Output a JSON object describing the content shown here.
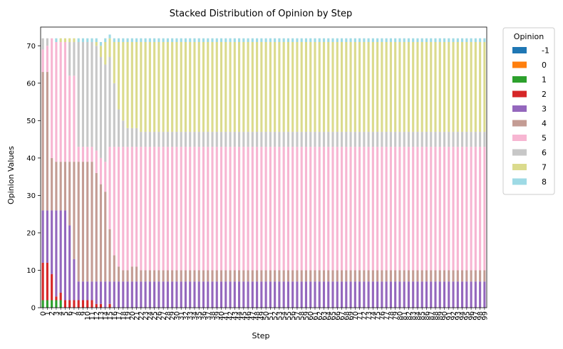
{
  "chart_data": {
    "type": "bar",
    "stacked": true,
    "title": "Stacked Distribution of Opinion by Step",
    "xlabel": "Step",
    "ylabel": "Opinion Values",
    "ylim": [
      0,
      75
    ],
    "yticks": [
      0,
      10,
      20,
      30,
      40,
      50,
      60,
      70
    ],
    "grid": false,
    "legend": {
      "title": "Opinion",
      "placement": "upper-right-outside"
    },
    "x": [
      0,
      1,
      2,
      3,
      4,
      5,
      6,
      7,
      8,
      9,
      10,
      11,
      12,
      13,
      14,
      15,
      16,
      17,
      18,
      19,
      20,
      21,
      22,
      23,
      24,
      25,
      26,
      27,
      28,
      29,
      30,
      31,
      32,
      33,
      34,
      35,
      36,
      37,
      38,
      39,
      40,
      41,
      42,
      43,
      44,
      45,
      46,
      47,
      48,
      49,
      50,
      51,
      52,
      53,
      54,
      55,
      56,
      57,
      58,
      59,
      60,
      61,
      62,
      63,
      64,
      65,
      66,
      67,
      68,
      69,
      70,
      71,
      72,
      73,
      74,
      75,
      76,
      77,
      78,
      79,
      80,
      81,
      82,
      83,
      84,
      85,
      86,
      87,
      88,
      89,
      90,
      91,
      92,
      93,
      94,
      95,
      96,
      97,
      98,
      99
    ],
    "series": [
      {
        "name": "-1",
        "color": "#1f77b4",
        "values": [
          0,
          0,
          0,
          0,
          0,
          0,
          0,
          0,
          0,
          0,
          0,
          0,
          0,
          0,
          0,
          0,
          0,
          0,
          0,
          0,
          0,
          0,
          0,
          0,
          0,
          0,
          0,
          0,
          0,
          0,
          0,
          0,
          0,
          0,
          0,
          0,
          0,
          0,
          0,
          0,
          0,
          0,
          0,
          0,
          0,
          0,
          0,
          0,
          0,
          0,
          0,
          0,
          0,
          0,
          0,
          0,
          0,
          0,
          0,
          0,
          0,
          0,
          0,
          0,
          0,
          0,
          0,
          0,
          0,
          0,
          0,
          0,
          0,
          0,
          0,
          0,
          0,
          0,
          0,
          0,
          0,
          0,
          0,
          0,
          0,
          0,
          0,
          0,
          0,
          0,
          0,
          0,
          0,
          0,
          0,
          0,
          0,
          0,
          0,
          0
        ]
      },
      {
        "name": "0",
        "color": "#ff7f0e",
        "values": [
          0,
          0,
          0,
          0,
          0,
          0,
          0,
          0,
          0,
          0,
          0,
          0,
          0,
          0,
          0,
          0,
          0,
          0,
          0,
          0,
          0,
          0,
          0,
          0,
          0,
          0,
          0,
          0,
          0,
          0,
          0,
          0,
          0,
          0,
          0,
          0,
          0,
          0,
          0,
          0,
          0,
          0,
          0,
          0,
          0,
          0,
          0,
          0,
          0,
          0,
          0,
          0,
          0,
          0,
          0,
          0,
          0,
          0,
          0,
          0,
          0,
          0,
          0,
          0,
          0,
          0,
          0,
          0,
          0,
          0,
          0,
          0,
          0,
          0,
          0,
          0,
          0,
          0,
          0,
          0,
          0,
          0,
          0,
          0,
          0,
          0,
          0,
          0,
          0,
          0,
          0,
          0,
          0,
          0,
          0,
          0,
          0,
          0,
          0,
          0
        ]
      },
      {
        "name": "1",
        "color": "#2ca02c",
        "values": [
          2,
          2,
          2,
          2,
          2,
          0,
          0,
          0,
          0,
          0,
          0,
          0,
          0,
          0,
          0,
          0,
          0,
          0,
          0,
          0,
          0,
          0,
          0,
          0,
          0,
          0,
          0,
          0,
          0,
          0,
          0,
          0,
          0,
          0,
          0,
          0,
          0,
          0,
          0,
          0,
          0,
          0,
          0,
          0,
          0,
          0,
          0,
          0,
          0,
          0,
          0,
          0,
          0,
          0,
          0,
          0,
          0,
          0,
          0,
          0,
          0,
          0,
          0,
          0,
          0,
          0,
          0,
          0,
          0,
          0,
          0,
          0,
          0,
          0,
          0,
          0,
          0,
          0,
          0,
          0,
          0,
          0,
          0,
          0,
          0,
          0,
          0,
          0,
          0,
          0,
          0,
          0,
          0,
          0,
          0,
          0,
          0,
          0,
          0,
          0
        ]
      },
      {
        "name": "2",
        "color": "#d62728",
        "values": [
          10,
          10,
          7,
          1,
          2,
          2,
          2,
          2,
          2,
          2,
          2,
          2,
          1,
          1,
          0,
          1,
          0,
          0,
          0,
          0,
          0,
          0,
          0,
          0,
          0,
          0,
          0,
          0,
          0,
          0,
          0,
          0,
          0,
          0,
          0,
          0,
          0,
          0,
          0,
          0,
          0,
          0,
          0,
          0,
          0,
          0,
          0,
          0,
          0,
          0,
          0,
          0,
          0,
          0,
          0,
          0,
          0,
          0,
          0,
          0,
          0,
          0,
          0,
          0,
          0,
          0,
          0,
          0,
          0,
          0,
          0,
          0,
          0,
          0,
          0,
          0,
          0,
          0,
          0,
          0,
          0,
          0,
          0,
          0,
          0,
          0,
          0,
          0,
          0,
          0,
          0,
          0,
          0,
          0,
          0,
          0,
          0,
          0,
          0,
          0
        ]
      },
      {
        "name": "3",
        "color": "#9467bd",
        "values": [
          14,
          14,
          17,
          23,
          22,
          24,
          20,
          11,
          5,
          5,
          5,
          5,
          6,
          6,
          7,
          6,
          7,
          7,
          7,
          7,
          7,
          7,
          7,
          7,
          7,
          7,
          7,
          7,
          7,
          7,
          7,
          7,
          7,
          7,
          7,
          7,
          7,
          7,
          7,
          7,
          7,
          7,
          7,
          7,
          7,
          7,
          7,
          7,
          7,
          7,
          7,
          7,
          7,
          7,
          7,
          7,
          7,
          7,
          7,
          7,
          7,
          7,
          7,
          7,
          7,
          7,
          7,
          7,
          7,
          7,
          7,
          7,
          7,
          7,
          7,
          7,
          7,
          7,
          7,
          7,
          7,
          7,
          7,
          7,
          7,
          7,
          7,
          7,
          7,
          7,
          7,
          7,
          7,
          7,
          7,
          7,
          7,
          7,
          7,
          7
        ]
      },
      {
        "name": "4",
        "color": "#c49c94",
        "values": [
          37,
          37,
          14,
          13,
          13,
          13,
          17,
          26,
          32,
          32,
          32,
          32,
          29,
          26,
          24,
          14,
          7,
          4,
          3,
          3,
          4,
          4,
          3,
          3,
          3,
          3,
          3,
          3,
          3,
          3,
          3,
          3,
          3,
          3,
          3,
          3,
          3,
          3,
          3,
          3,
          3,
          3,
          3,
          3,
          3,
          3,
          3,
          3,
          3,
          3,
          3,
          3,
          3,
          3,
          3,
          3,
          3,
          3,
          3,
          3,
          3,
          3,
          3,
          3,
          3,
          3,
          3,
          3,
          3,
          3,
          3,
          3,
          3,
          3,
          3,
          3,
          3,
          3,
          3,
          3,
          3,
          3,
          3,
          3,
          3,
          3,
          3,
          3,
          3,
          3,
          3,
          3,
          3,
          3,
          3,
          3,
          3,
          3,
          3,
          3
        ]
      },
      {
        "name": "5",
        "color": "#f7b6d2",
        "values": [
          6,
          7,
          32,
          32,
          32,
          32,
          23,
          23,
          4,
          4,
          4,
          4,
          6,
          7,
          8,
          22,
          29,
          32,
          33,
          33,
          32,
          32,
          33,
          33,
          33,
          33,
          33,
          33,
          33,
          33,
          33,
          33,
          33,
          33,
          33,
          33,
          33,
          33,
          33,
          33,
          33,
          33,
          33,
          33,
          33,
          33,
          33,
          33,
          33,
          33,
          33,
          33,
          33,
          33,
          33,
          33,
          33,
          33,
          33,
          33,
          33,
          33,
          33,
          33,
          33,
          33,
          33,
          33,
          33,
          33,
          33,
          33,
          33,
          33,
          33,
          33,
          33,
          33,
          33,
          33,
          33,
          33,
          33,
          33,
          33,
          33,
          33,
          33,
          33,
          33,
          33,
          33,
          33,
          33,
          33,
          33,
          33,
          33,
          33,
          33
        ]
      },
      {
        "name": "6",
        "color": "#c7c7c7",
        "values": [
          3,
          2,
          0,
          0,
          0,
          0,
          9,
          9,
          28,
          28,
          28,
          28,
          28,
          27,
          26,
          24,
          17,
          10,
          7,
          5,
          5,
          5,
          4,
          4,
          4,
          4,
          4,
          4,
          4,
          4,
          4,
          4,
          4,
          4,
          4,
          4,
          4,
          4,
          4,
          4,
          4,
          4,
          4,
          4,
          4,
          4,
          4,
          4,
          4,
          4,
          4,
          4,
          4,
          4,
          4,
          4,
          4,
          4,
          4,
          4,
          4,
          4,
          4,
          4,
          4,
          4,
          4,
          4,
          4,
          4,
          4,
          4,
          4,
          4,
          4,
          4,
          4,
          4,
          4,
          4,
          4,
          4,
          4,
          4,
          4,
          4,
          4,
          4,
          4,
          4,
          4,
          4,
          4,
          4,
          4,
          4,
          4,
          4,
          4,
          4
        ]
      },
      {
        "name": "7",
        "color": "#dbdb8d",
        "values": [
          0,
          0,
          0,
          0,
          1,
          1,
          1,
          1,
          0,
          0,
          0,
          0,
          1,
          3,
          6,
          5,
          11,
          18,
          21,
          23,
          23,
          23,
          24,
          24,
          24,
          24,
          24,
          24,
          24,
          24,
          24,
          24,
          24,
          24,
          24,
          24,
          24,
          24,
          24,
          24,
          24,
          24,
          24,
          24,
          24,
          24,
          24,
          24,
          24,
          24,
          24,
          24,
          24,
          24,
          24,
          24,
          24,
          24,
          24,
          24,
          24,
          24,
          24,
          24,
          24,
          24,
          24,
          24,
          24,
          24,
          24,
          24,
          24,
          24,
          24,
          24,
          24,
          24,
          24,
          24,
          24,
          24,
          24,
          24,
          24,
          24,
          24,
          24,
          24,
          24,
          24,
          24,
          24,
          24,
          24,
          24,
          24,
          24,
          24,
          24
        ]
      },
      {
        "name": "8",
        "color": "#9edae5",
        "values": [
          0,
          0,
          0,
          1,
          0,
          0,
          0,
          0,
          1,
          1,
          1,
          1,
          1,
          1,
          1,
          1,
          1,
          1,
          1,
          1,
          1,
          1,
          1,
          1,
          1,
          1,
          1,
          1,
          1,
          1,
          1,
          1,
          1,
          1,
          1,
          1,
          1,
          1,
          1,
          1,
          1,
          1,
          1,
          1,
          1,
          1,
          1,
          1,
          1,
          1,
          1,
          1,
          1,
          1,
          1,
          1,
          1,
          1,
          1,
          1,
          1,
          1,
          1,
          1,
          1,
          1,
          1,
          1,
          1,
          1,
          1,
          1,
          1,
          1,
          1,
          1,
          1,
          1,
          1,
          1,
          1,
          1,
          1,
          1,
          1,
          1,
          1,
          1,
          1,
          1,
          1,
          1,
          1,
          1,
          1,
          1,
          1,
          1,
          1,
          1
        ]
      }
    ]
  }
}
